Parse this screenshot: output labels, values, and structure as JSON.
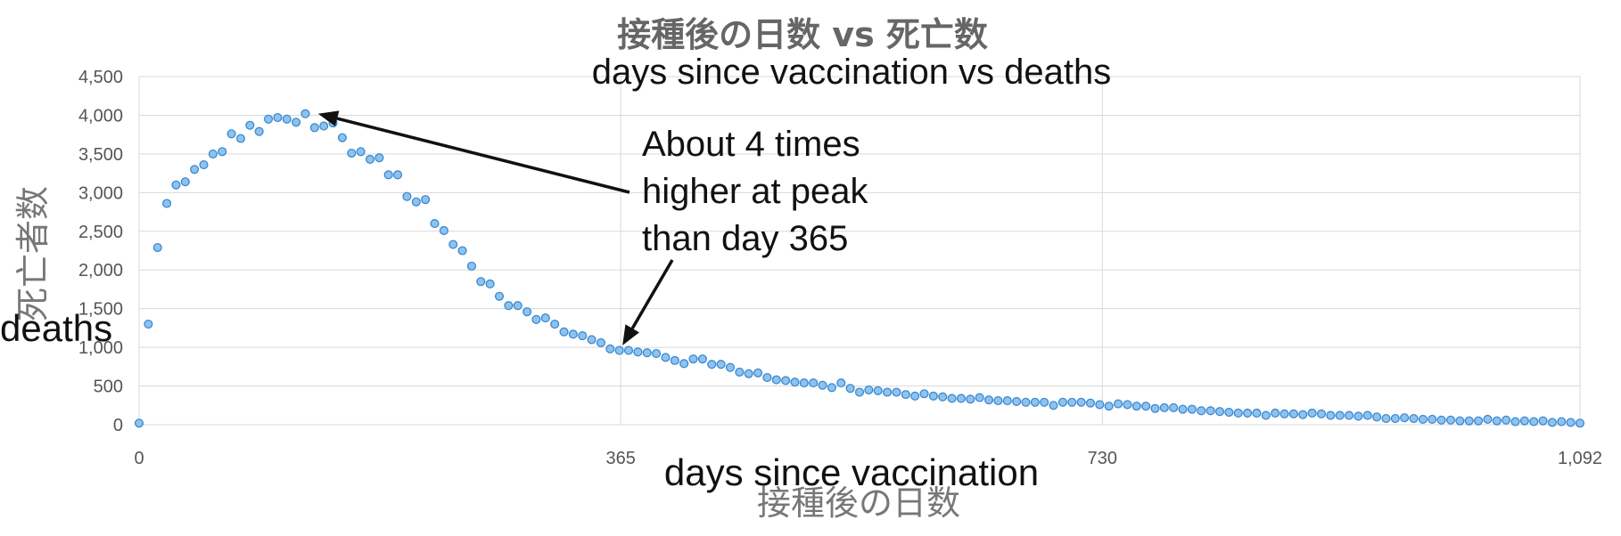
{
  "chart_data": {
    "type": "scatter",
    "title": "接種後の日数 vs 死亡数",
    "subtitle": "days since vaccination vs deaths",
    "xlabel": "days since vaccination",
    "xlabel_jp": "接種後の日数",
    "ylabel": "deaths",
    "ylabel_jp": "死亡者数",
    "xlim": [
      0,
      1092
    ],
    "ylim": [
      0,
      4500
    ],
    "x_ticks": [
      0,
      365,
      730,
      1092
    ],
    "x_tick_labels": [
      "0",
      "365",
      "730",
      "1,092"
    ],
    "y_ticks": [
      0,
      500,
      1000,
      1500,
      2000,
      2500,
      3000,
      3500,
      4000,
      4500
    ],
    "y_tick_labels": [
      "0",
      "500",
      "1,000",
      "1,500",
      "2,000",
      "2,500",
      "3,000",
      "3,500",
      "4,000",
      "4,500"
    ],
    "grid": true,
    "annotation": {
      "lines": [
        "About 4 times",
        "higher at peak",
        "than day 365"
      ],
      "targets": [
        [
          133,
          4020
        ],
        [
          365,
          980
        ]
      ]
    },
    "points": {
      "x": [
        0,
        7,
        14,
        21,
        28,
        35,
        42,
        49,
        56,
        63,
        70,
        77,
        84,
        91,
        98,
        105,
        112,
        119,
        126,
        133,
        140,
        147,
        154,
        161,
        168,
        175,
        182,
        189,
        196,
        203,
        210,
        217,
        224,
        231,
        238,
        245,
        252,
        259,
        266,
        273,
        280,
        287,
        294,
        301,
        308,
        315,
        322,
        329,
        336,
        343,
        350,
        357,
        364,
        371,
        378,
        385,
        392,
        399,
        406,
        413,
        420,
        427,
        434,
        441,
        448,
        455,
        462,
        469,
        476,
        483,
        490,
        497,
        504,
        511,
        518,
        525,
        532,
        539,
        546,
        553,
        560,
        567,
        574,
        581,
        588,
        595,
        602,
        609,
        616,
        623,
        630,
        637,
        644,
        651,
        658,
        665,
        672,
        679,
        686,
        693,
        700,
        707,
        714,
        721,
        728,
        735,
        742,
        749,
        756,
        763,
        770,
        777,
        784,
        791,
        798,
        805,
        812,
        819,
        826,
        833,
        840,
        847,
        854,
        861,
        868,
        875,
        882,
        889,
        896,
        903,
        910,
        917,
        924,
        931,
        938,
        945,
        952,
        959,
        966,
        973,
        980,
        987,
        994,
        1001,
        1008,
        1015,
        1022,
        1029,
        1036,
        1043,
        1050,
        1057,
        1064,
        1071,
        1078,
        1085,
        1092
      ],
      "y": [
        20,
        1300,
        2290,
        2860,
        3100,
        3140,
        3300,
        3360,
        3500,
        3530,
        3760,
        3700,
        3870,
        3790,
        3950,
        3970,
        3950,
        3910,
        4020,
        3840,
        3860,
        3900,
        3710,
        3510,
        3530,
        3430,
        3450,
        3230,
        3230,
        2950,
        2880,
        2910,
        2600,
        2510,
        2330,
        2250,
        2050,
        1850,
        1820,
        1660,
        1540,
        1540,
        1460,
        1360,
        1380,
        1300,
        1200,
        1170,
        1150,
        1100,
        1060,
        980,
        960,
        960,
        940,
        930,
        920,
        870,
        830,
        790,
        850,
        850,
        780,
        780,
        740,
        680,
        660,
        670,
        610,
        580,
        570,
        550,
        540,
        540,
        510,
        480,
        540,
        470,
        420,
        450,
        440,
        420,
        420,
        390,
        370,
        400,
        370,
        360,
        340,
        340,
        330,
        350,
        320,
        310,
        310,
        300,
        290,
        290,
        290,
        250,
        290,
        290,
        290,
        280,
        260,
        240,
        270,
        260,
        240,
        240,
        210,
        220,
        220,
        200,
        200,
        180,
        180,
        170,
        160,
        150,
        150,
        150,
        120,
        150,
        140,
        140,
        130,
        150,
        140,
        120,
        120,
        120,
        110,
        120,
        100,
        80,
        80,
        90,
        80,
        70,
        70,
        60,
        60,
        50,
        50,
        50,
        70,
        50,
        60,
        40,
        50,
        40,
        50,
        30,
        40,
        30,
        20
      ]
    }
  }
}
